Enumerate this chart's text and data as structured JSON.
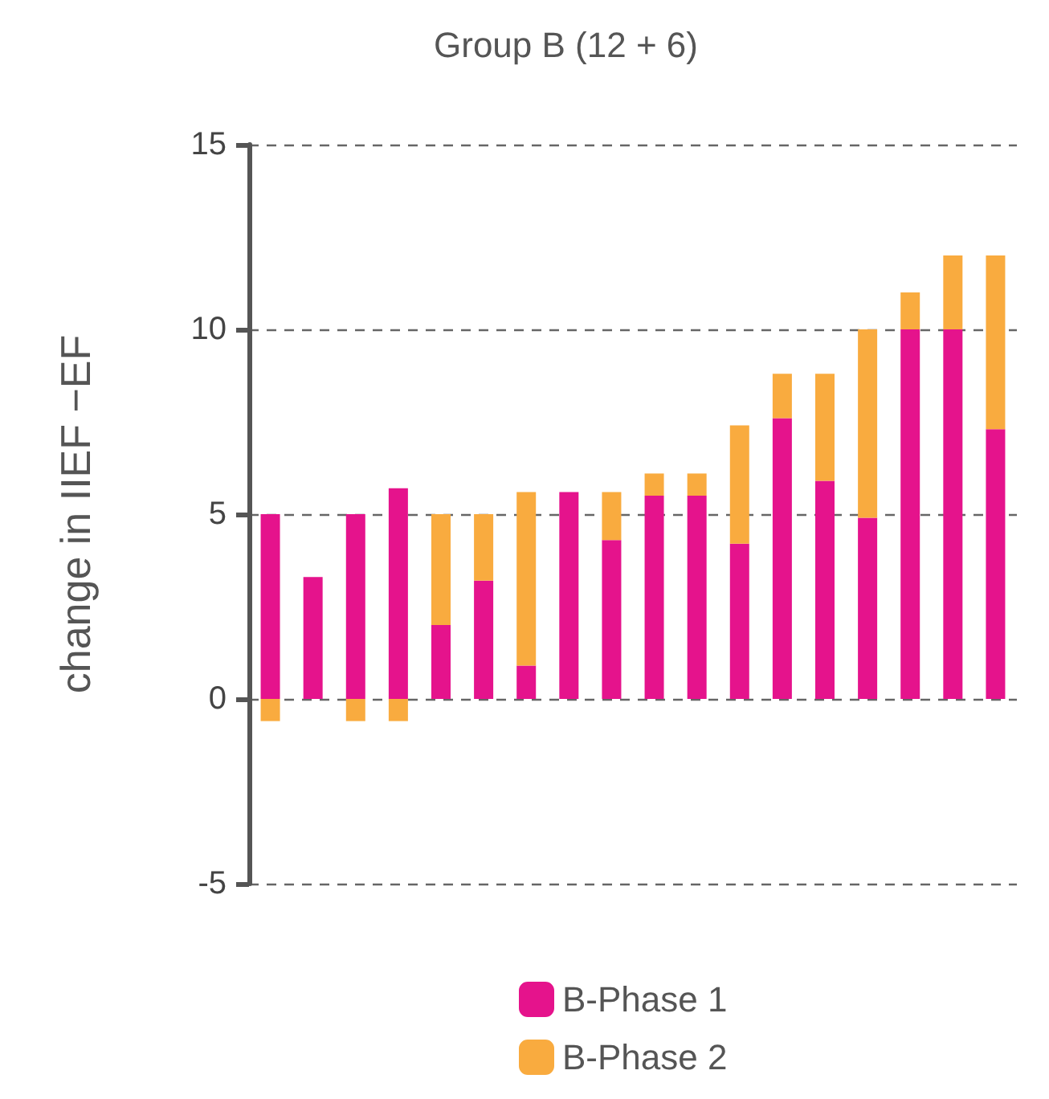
{
  "chart_data": {
    "type": "bar",
    "title": "Group B (12 + 6)",
    "ylabel": "change in IIEF −EF",
    "categories": [
      null,
      null,
      null,
      null,
      null,
      null,
      null,
      null,
      null,
      null,
      null,
      null,
      null,
      null,
      null,
      null,
      null,
      null
    ],
    "series": [
      {
        "name": "B-Phase 1",
        "color": "#e5138c",
        "values": [
          5,
          3.3,
          5,
          5.7,
          2,
          3.2,
          0.9,
          5.6,
          4.3,
          5.5,
          5.5,
          4.2,
          7.6,
          5.9,
          4.9,
          10,
          10,
          7.3
        ]
      },
      {
        "name": "B-Phase 2",
        "color": "#f9ab3f",
        "values": [
          -0.6,
          null,
          -0.6,
          -0.6,
          3,
          1.8,
          4.7,
          null,
          1.3,
          0.6,
          0.6,
          3.2,
          1.2,
          2.9,
          5.1,
          1,
          2,
          4.7
        ]
      }
    ],
    "stacked": true,
    "ylim": [
      -5,
      15
    ],
    "yticks": [
      -5,
      0,
      5,
      10,
      15
    ],
    "grid": "y",
    "legend": "bottom",
    "tick_labels": "y"
  }
}
